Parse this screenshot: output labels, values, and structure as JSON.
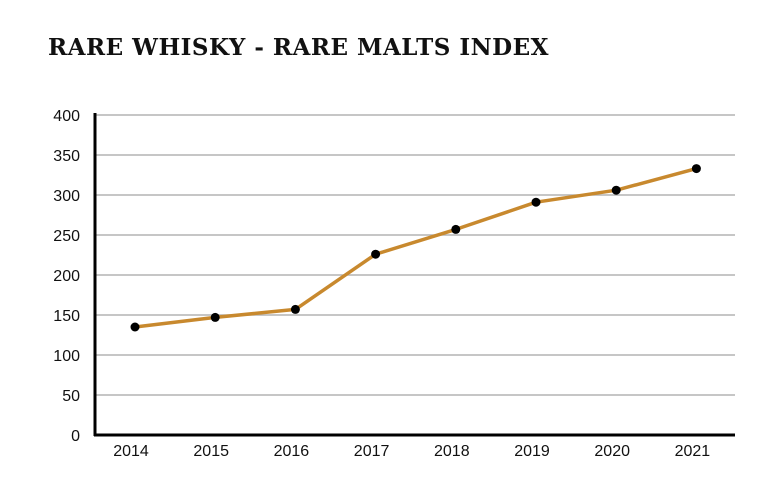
{
  "chart_data": {
    "type": "line",
    "title": "RARE WHISKY - RARE MALTS INDEX",
    "xlabel": "",
    "ylabel": "",
    "categories": [
      "2014",
      "2015",
      "2016",
      "2017",
      "2018",
      "2019",
      "2020",
      "2021"
    ],
    "series": [
      {
        "values": [
          135,
          147,
          157,
          226,
          257,
          291,
          306,
          333
        ]
      }
    ],
    "ylim": [
      0,
      400
    ],
    "yticks": [
      0,
      50,
      100,
      150,
      200,
      250,
      300,
      350,
      400
    ],
    "grid": true,
    "legend": "none",
    "colors": {
      "line": "#C8892E",
      "marker": "#000000",
      "grid": "#b3b3b3",
      "axis": "#000000"
    }
  }
}
